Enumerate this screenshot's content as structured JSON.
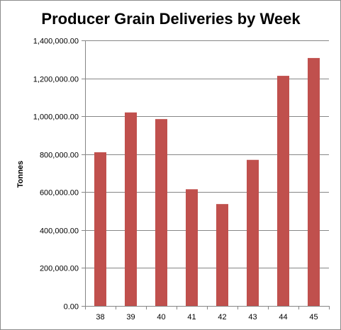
{
  "chart_data": {
    "type": "bar",
    "title": "Producer Grain Deliveries by Week",
    "xlabel": "",
    "ylabel": "Tonnes",
    "categories": [
      "38",
      "39",
      "40",
      "41",
      "42",
      "43",
      "44",
      "45"
    ],
    "values": [
      810000,
      1020000,
      985000,
      615000,
      537000,
      770000,
      1213000,
      1307000
    ],
    "ylim": [
      0,
      1400000
    ],
    "yticks": [
      0,
      200000,
      400000,
      600000,
      800000,
      1000000,
      1200000,
      1400000
    ],
    "ytick_labels": [
      "0.00",
      "200,000.00",
      "400,000.00",
      "600,000.00",
      "800,000.00",
      "1,000,000.00",
      "1,200,000.00",
      "1,400,000.00"
    ],
    "grid": true,
    "legend": "none",
    "colors": {
      "bar": "#c0504d",
      "grid": "#868686",
      "axis": "#868686",
      "background": "#ffffff"
    }
  }
}
